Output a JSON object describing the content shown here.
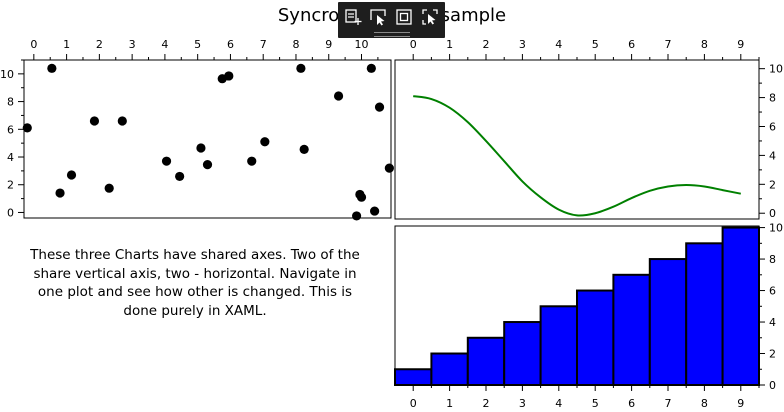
{
  "title": "Syncronized axes sample",
  "description": "These three Charts have shared axes. Two of the share vertical axis, two - horizontal. Navigate in one plot and see how other is changed. This is done purely in XAML.",
  "toolbar": {
    "icons": [
      "insert-element-icon",
      "select-pointer-icon",
      "layout-frame-icon",
      "pick-element-icon"
    ]
  },
  "chart_data": [
    {
      "type": "scatter",
      "xlim": [
        -0.3,
        10.9
      ],
      "ylim": [
        -0.4,
        11.0
      ],
      "x_ticks": [
        0,
        1,
        2,
        3,
        4,
        5,
        6,
        7,
        8,
        9,
        10
      ],
      "y_ticks": [
        0,
        2,
        4,
        6,
        8,
        10
      ],
      "x_axis_position": "top",
      "y_axis_position": "left",
      "marker_color": "#000000",
      "points": [
        {
          "x": -0.2,
          "y": 6.1
        },
        {
          "x": 0.55,
          "y": 10.4
        },
        {
          "x": 0.8,
          "y": 1.4
        },
        {
          "x": 1.15,
          "y": 2.7
        },
        {
          "x": 1.85,
          "y": 6.6
        },
        {
          "x": 2.3,
          "y": 1.75
        },
        {
          "x": 2.7,
          "y": 6.6
        },
        {
          "x": 4.05,
          "y": 3.7
        },
        {
          "x": 4.45,
          "y": 2.6
        },
        {
          "x": 5.1,
          "y": 4.65
        },
        {
          "x": 5.3,
          "y": 3.45
        },
        {
          "x": 5.75,
          "y": 9.65
        },
        {
          "x": 5.95,
          "y": 9.85
        },
        {
          "x": 6.65,
          "y": 3.7
        },
        {
          "x": 7.05,
          "y": 5.1
        },
        {
          "x": 8.15,
          "y": 10.4
        },
        {
          "x": 8.25,
          "y": 4.55
        },
        {
          "x": 9.3,
          "y": 8.4
        },
        {
          "x": 9.85,
          "y": -0.25
        },
        {
          "x": 9.95,
          "y": 1.3
        },
        {
          "x": 10.0,
          "y": 1.1
        },
        {
          "x": 10.3,
          "y": 10.4
        },
        {
          "x": 10.4,
          "y": 0.1
        },
        {
          "x": 10.55,
          "y": 7.6
        },
        {
          "x": 10.85,
          "y": 3.2
        }
      ]
    },
    {
      "type": "line",
      "xlim": [
        -0.5,
        9.5
      ],
      "ylim": [
        -0.4,
        10.6
      ],
      "x_ticks": [
        0,
        1,
        2,
        3,
        4,
        5,
        6,
        7,
        8,
        9
      ],
      "y_ticks": [
        0,
        2,
        4,
        6,
        8,
        10
      ],
      "x_axis_position": "top",
      "y_axis_position": "right",
      "line_color": "#008000",
      "x": [
        0,
        0.5,
        1,
        1.5,
        2,
        2.5,
        3,
        3.5,
        4,
        4.5,
        5,
        5.5,
        6,
        6.5,
        7,
        7.5,
        8,
        8.5,
        9
      ],
      "y": [
        8.1,
        7.9,
        7.3,
        6.3,
        5.0,
        3.6,
        2.2,
        1.1,
        0.25,
        -0.15,
        0.0,
        0.45,
        1.05,
        1.55,
        1.85,
        1.95,
        1.85,
        1.6,
        1.35
      ]
    },
    {
      "type": "bar",
      "xlim": [
        -0.5,
        9.5
      ],
      "ylim": [
        0,
        10.1
      ],
      "x_ticks": [
        0,
        1,
        2,
        3,
        4,
        5,
        6,
        7,
        8,
        9
      ],
      "y_ticks": [
        0,
        2,
        4,
        6,
        8,
        10
      ],
      "x_axis_position": "bottom",
      "y_axis_position": "right",
      "bar_color": "#0000ff",
      "categories": [
        0,
        1,
        2,
        3,
        4,
        5,
        6,
        7,
        8,
        9
      ],
      "values": [
        1,
        2,
        3,
        4,
        5,
        6,
        7,
        8,
        9,
        10
      ]
    }
  ]
}
